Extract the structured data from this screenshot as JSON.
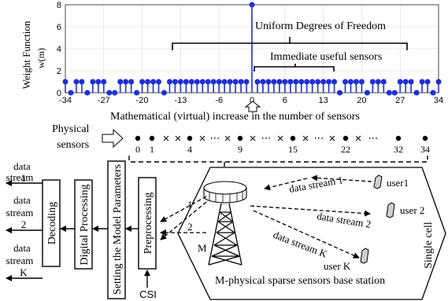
{
  "chart_data": {
    "type": "scatter",
    "style": "stem",
    "ylabel_line1": "Weight Function",
    "ylabel_line2": "w(m)",
    "xlim": [
      -34,
      34
    ],
    "ylim": [
      0,
      8
    ],
    "x_ticks": [
      -34,
      -27,
      -20,
      -13,
      -6,
      0,
      6,
      13,
      20,
      27,
      34
    ],
    "y_ticks": [
      0,
      2,
      4,
      6,
      8
    ],
    "tick_labels_x": [
      "-34",
      "-27",
      "-20",
      "-13",
      "-6",
      "0",
      "6",
      "13",
      "20",
      "27",
      "34"
    ],
    "tick_labels_y": [
      "0",
      "2",
      "4",
      "6",
      "8"
    ],
    "grid": true,
    "marker_color": "#1f2fd6",
    "zero_x": [
      -33,
      -30,
      -26,
      -25,
      -21,
      -16,
      16,
      21,
      25,
      26,
      30,
      33
    ],
    "peak_x": 0,
    "peak_value": 8,
    "base_value": 1,
    "annotation_uniform": "Uniform Degrees of Freedom",
    "annotation_useful": "Immediate useful sensors"
  },
  "diagram": {
    "increase_text": "Mathematical (virtual) increase in the  number of  sensors",
    "physical_label_1": "Physical",
    "physical_label_2": "sensors",
    "sensor_labels": [
      "0",
      "1",
      "4",
      "9",
      "15",
      "22",
      "32",
      "34"
    ],
    "cross_symbol": "×",
    "ellipsis_symbol": "⋯",
    "blocks": {
      "decoding": "Decoding",
      "digital": "Digital Processing",
      "setting": "Setting the Model Parameters",
      "preprocessing": "Preprocessing"
    },
    "csi": "CSI",
    "outputs": [
      {
        "line1": "data",
        "line2": "stream",
        "line3": "1"
      },
      {
        "line1": "data",
        "line2": "stream",
        "line3": "2"
      },
      {
        "line1": "data",
        "line2": "stream",
        "line3": "K"
      }
    ],
    "path_labels": [
      "1",
      "2",
      "M"
    ],
    "streams": [
      "data stream 1",
      "data stream 2",
      "data stream K"
    ],
    "users": [
      "user1",
      "user 2",
      "user K"
    ],
    "single_cell": "Single cell",
    "base_station": "M-physical sparse sensors base station"
  }
}
